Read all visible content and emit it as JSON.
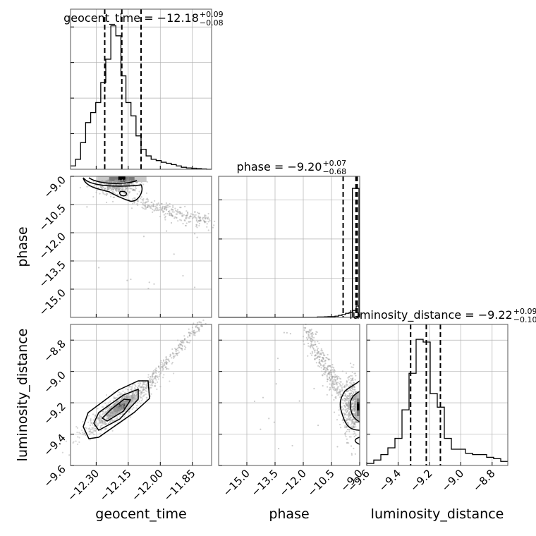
{
  "chart_data": {
    "type": "corner",
    "parameters": [
      "geocent_time",
      "phase",
      "luminosity_distance"
    ],
    "titles": [
      {
        "param": "geocent_time",
        "text": "geocent_time = −12.18",
        "plus": "+0.09",
        "minus": "−0.08"
      },
      {
        "param": "phase",
        "text": "phase = −9.20",
        "plus": "+0.07",
        "minus": "−0.68"
      },
      {
        "param": "luminosity_distance",
        "text": "luminosity_distance = −9.22",
        "plus": "+0.09",
        "minus": "−0.10"
      }
    ],
    "axes": {
      "geocent_time": {
        "range": [
          -12.42,
          -11.76
        ],
        "ticks": [
          -12.3,
          -12.15,
          -12.0,
          -11.85
        ],
        "tick_labels": [
          "−12.30",
          "−12.15",
          "−12.00",
          "−11.85"
        ],
        "quantiles": [
          -12.26,
          -12.18,
          -12.09
        ]
      },
      "phase": {
        "range": [
          -16.5,
          -9.0
        ],
        "ticks": [
          -15.0,
          -13.5,
          -12.0,
          -10.5,
          -9.0
        ],
        "tick_labels": [
          "−15.0",
          "−13.5",
          "−12.0",
          "−10.5",
          "−9.0"
        ],
        "quantiles": [
          -9.88,
          -9.2,
          -9.13
        ]
      },
      "luminosity_distance": {
        "range": [
          -9.6,
          -8.7
        ],
        "ticks": [
          -9.6,
          -9.4,
          -9.2,
          -9.0,
          -8.8
        ],
        "tick_labels": [
          "−9.6",
          "−9.4",
          "−9.2",
          "−9.0",
          "−8.8"
        ],
        "quantiles": [
          -9.32,
          -9.22,
          -9.13
        ]
      }
    },
    "hist_geocent_time": [
      1,
      3,
      8,
      14,
      17,
      20,
      26,
      33,
      43,
      40,
      28,
      20,
      16,
      10,
      6,
      4,
      3,
      2.6,
      2.1,
      1.8,
      1.4,
      1,
      0.6,
      0.4,
      0.3,
      0.2,
      0.1,
      0
    ],
    "hist_phase": [
      0,
      0,
      0,
      0,
      0,
      0,
      0,
      0,
      0,
      0,
      0,
      0,
      0,
      0,
      0,
      0,
      0,
      0,
      0,
      0,
      0,
      0,
      0,
      0,
      0,
      0,
      0,
      0,
      0.01,
      0.01,
      0.015,
      0.02,
      0.02,
      0.03,
      0.05,
      0.07,
      0.1,
      0.12,
      0.17,
      0.28
    ],
    "hist_phase_spike": 3.2,
    "hist_luminosity_distance": [
      0.15,
      0.4,
      0.8,
      1.3,
      2.0,
      4.1,
      6.8,
      9.3,
      9.1,
      5.3,
      4.3,
      2.0,
      1.2,
      1.2,
      0.9,
      0.8,
      0.8,
      0.6,
      0.5,
      0.3
    ],
    "grid": true,
    "colors": {
      "line": "#000000",
      "scatter": "#9a9a9a",
      "grid": "#b0b0b0",
      "axes": "#555555"
    }
  }
}
